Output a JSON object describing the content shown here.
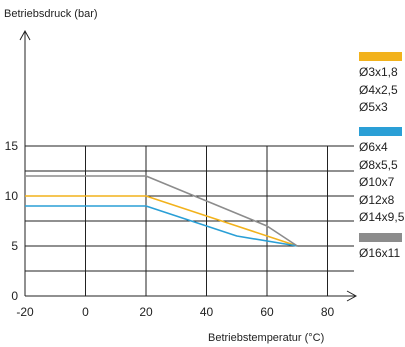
{
  "chart_data": {
    "type": "line",
    "title": "",
    "ylabel": "Betriebsdruck (bar)",
    "xlabel": "Betriebstemperatur (°C)",
    "xlim": [
      -20,
      80
    ],
    "ylim": [
      0,
      15
    ],
    "x_ticks": [
      -20,
      0,
      20,
      40,
      60,
      80
    ],
    "y_ticks": [
      0,
      5,
      10,
      15
    ],
    "grid": true,
    "legend_position": "right",
    "series": [
      {
        "color": "#f2b21c",
        "points": [
          [
            -20,
            10
          ],
          [
            20,
            10
          ],
          [
            50,
            7
          ],
          [
            70,
            5
          ]
        ],
        "legend": [
          "Ø3x1,8",
          "Ø4x2,5",
          "Ø5x3"
        ]
      },
      {
        "color": "#2a9fd6",
        "points": [
          [
            -20,
            9
          ],
          [
            20,
            9
          ],
          [
            50,
            6
          ],
          [
            70,
            5
          ]
        ],
        "legend": [
          "Ø6x4",
          "Ø8x5,5",
          "Ø10x7",
          "Ø12x8",
          "Ø14x9,5"
        ]
      },
      {
        "color": "#8c8c8c",
        "points": [
          [
            -20,
            12
          ],
          [
            20,
            12
          ],
          [
            60,
            7
          ],
          [
            70,
            5
          ]
        ],
        "legend": [
          "Ø16x11"
        ]
      }
    ]
  }
}
